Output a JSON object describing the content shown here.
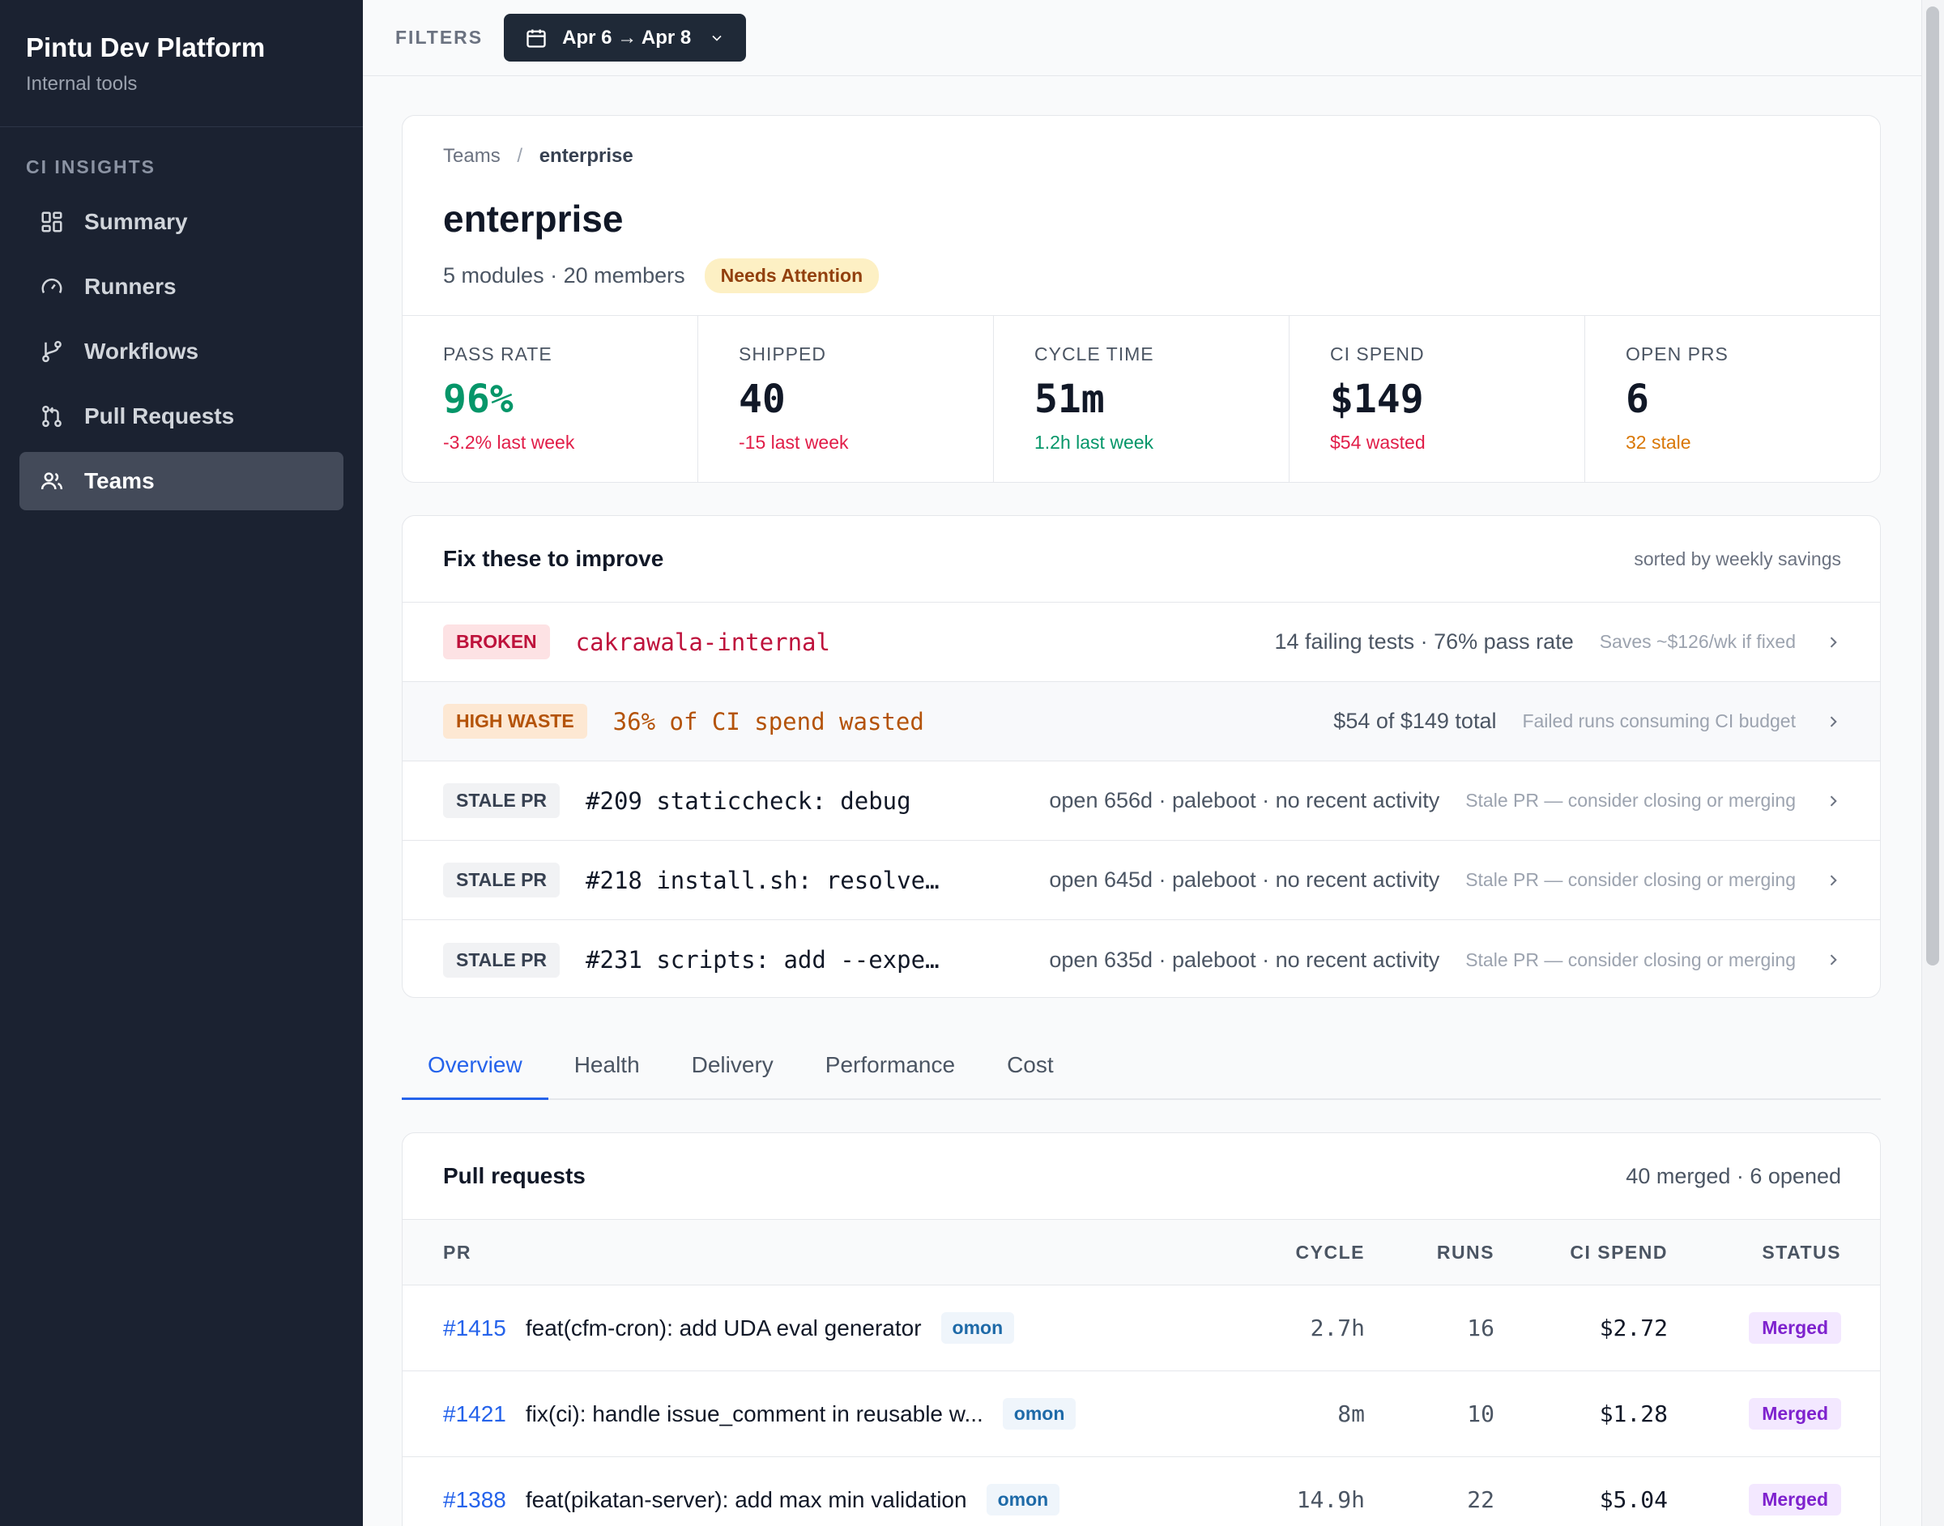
{
  "sidebar": {
    "brand_title": "Pintu Dev Platform",
    "brand_subtitle": "Internal tools",
    "section_label": "CI INSIGHTS",
    "items": [
      {
        "label": "Summary",
        "icon": "dashboard-icon"
      },
      {
        "label": "Runners",
        "icon": "gauge-icon"
      },
      {
        "label": "Workflows",
        "icon": "git-branch-icon"
      },
      {
        "label": "Pull Requests",
        "icon": "git-pull-request-icon"
      },
      {
        "label": "Teams",
        "icon": "users-icon",
        "active": true
      }
    ]
  },
  "filters": {
    "label": "FILTERS",
    "date_range": "Apr 6 → Apr 8"
  },
  "team": {
    "breadcrumb_root": "Teams",
    "breadcrumb_sep": "/",
    "breadcrumb_current": "enterprise",
    "name": "enterprise",
    "meta": "5 modules · 20 members",
    "status_badge": "Needs Attention"
  },
  "stats": [
    {
      "label": "PASS RATE",
      "value": "96%",
      "sub": "-3.2% last week",
      "value_color": "#059669",
      "sub_color": "#e11d48"
    },
    {
      "label": "SHIPPED",
      "value": "40",
      "sub": "-15 last week",
      "value_color": "#111827",
      "sub_color": "#e11d48"
    },
    {
      "label": "CYCLE TIME",
      "value": "51m",
      "sub": "1.2h last week",
      "value_color": "#111827",
      "sub_color": "#059669"
    },
    {
      "label": "CI SPEND",
      "value": "$149",
      "sub": "$54 wasted",
      "value_color": "#111827",
      "sub_color": "#e11d48"
    },
    {
      "label": "OPEN PRS",
      "value": "6",
      "sub": "32 stale",
      "value_color": "#111827",
      "sub_color": "#d97706"
    }
  ],
  "fix": {
    "title": "Fix these to improve",
    "sort_note": "sorted by weekly savings",
    "rows": [
      {
        "tag": "BROKEN",
        "name": "cakrawala-internal",
        "detail": "14 failing tests · 76% pass rate",
        "note": "Saves ~$126/wk if fixed"
      },
      {
        "tag": "HIGH WASTE",
        "name": "36% of CI spend wasted",
        "detail": "$54 of $149 total",
        "note": "Failed runs consuming CI budget"
      },
      {
        "tag": "STALE PR",
        "name": "#209 staticcheck: debug",
        "detail": "open 656d · paleboot · no recent activity",
        "note": "Stale PR — consider closing or merging"
      },
      {
        "tag": "STALE PR",
        "name": "#218 install.sh: resolve …",
        "detail": "open 645d · paleboot · no recent activity",
        "note": "Stale PR — consider closing or merging"
      },
      {
        "tag": "STALE PR",
        "name": "#231 scripts: add --exper…",
        "detail": "open 635d · paleboot · no recent activity",
        "note": "Stale PR — consider closing or merging"
      }
    ]
  },
  "tabs": [
    "Overview",
    "Health",
    "Delivery",
    "Performance",
    "Cost"
  ],
  "pull_requests": {
    "title": "Pull requests",
    "summary": "40 merged · 6 opened",
    "columns": [
      "PR",
      "CYCLE",
      "RUNS",
      "CI SPEND",
      "STATUS"
    ],
    "rows": [
      {
        "num": "#1415",
        "title": "feat(cfm-cron): add UDA eval generator",
        "author": "omon",
        "cycle": "2.7h",
        "runs": "16",
        "spend": "$2.72",
        "status": "Merged"
      },
      {
        "num": "#1421",
        "title": "fix(ci): handle issue_comment in reusable w...",
        "author": "omon",
        "cycle": "8m",
        "runs": "10",
        "spend": "$1.28",
        "status": "Merged"
      },
      {
        "num": "#1388",
        "title": "feat(pikatan-server): add max min validation",
        "author": "omon",
        "cycle": "14.9h",
        "runs": "22",
        "spend": "$5.04",
        "status": "Merged"
      }
    ]
  }
}
